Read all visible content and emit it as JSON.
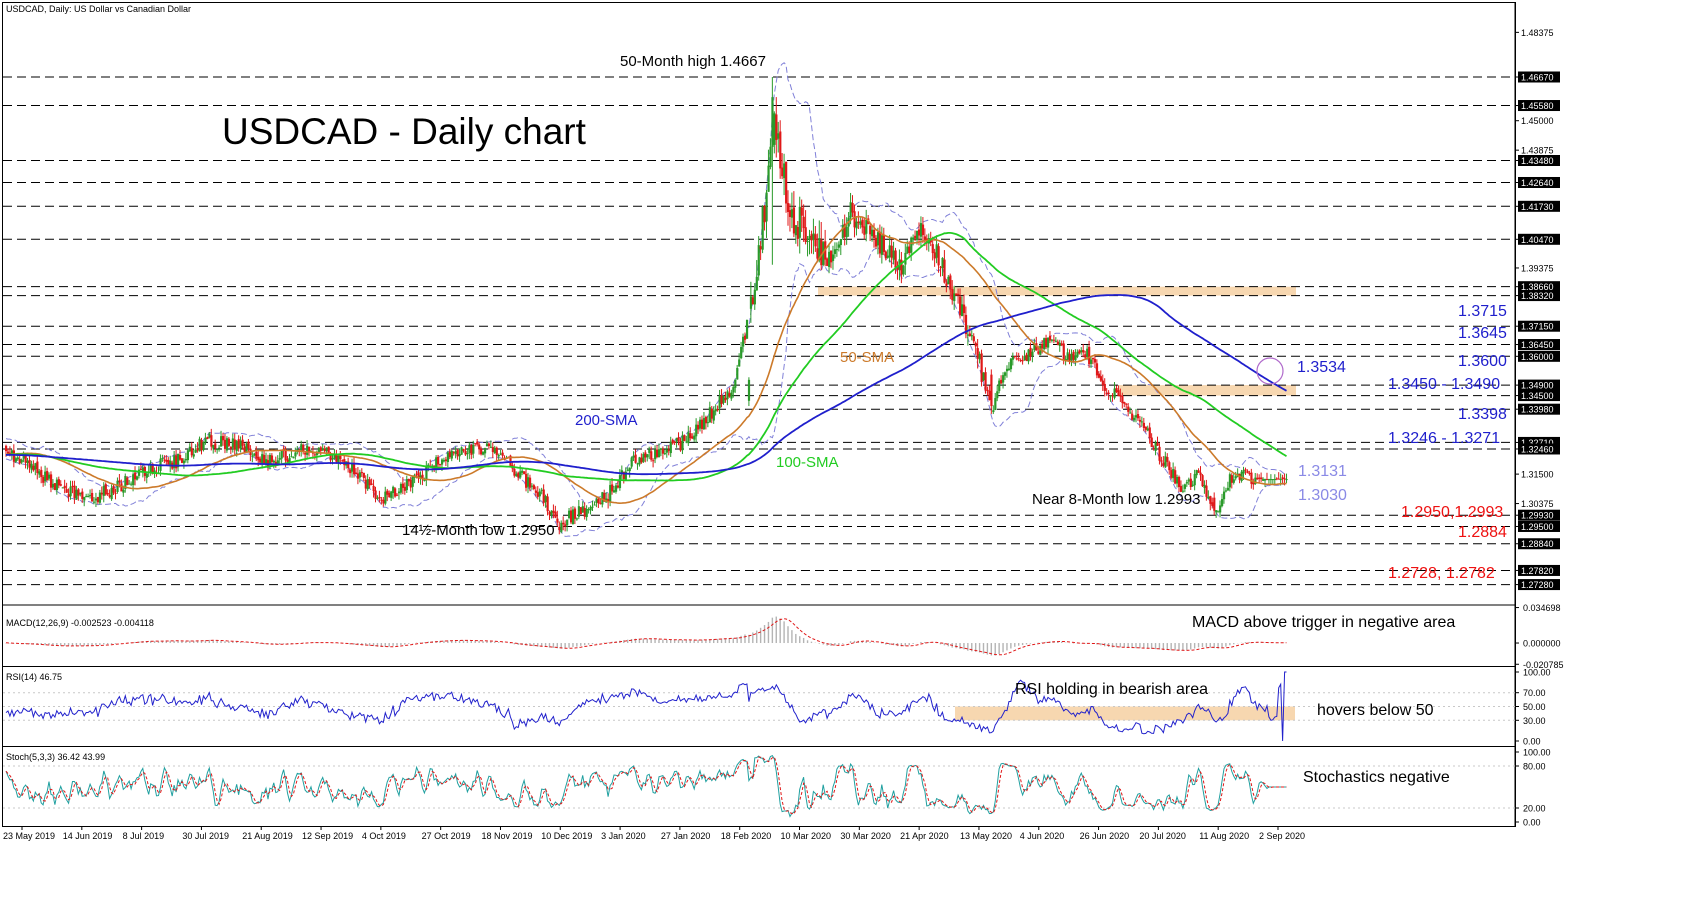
{
  "chart_data": [
    {
      "type": "candlestick",
      "name": "price",
      "header": "USDCAD, Daily:  US Dollar vs Canadian Dollar",
      "title": "USDCAD - Daily chart",
      "ylim": [
        1.265,
        1.49
      ],
      "ytick_labels": [
        "1.48375",
        "1.46670",
        "1.45580",
        "1.45000",
        "1.43875",
        "1.43480",
        "1.42640",
        "1.41730",
        "1.40470",
        "1.39375",
        "1.38660",
        "1.38320",
        "1.37150",
        "1.36450",
        "1.36000",
        "1.34900",
        "1.34500",
        "1.33980",
        "1.32710",
        "1.32460",
        "1.31500",
        "1.30375",
        "1.29930",
        "1.29500",
        "1.28840",
        "1.27820",
        "1.27280"
      ],
      "ytick_values": [
        1.48375,
        1.4667,
        1.4558,
        1.45,
        1.43875,
        1.4348,
        1.4264,
        1.4173,
        1.4047,
        1.39375,
        1.3866,
        1.3832,
        1.3715,
        1.3645,
        1.36,
        1.349,
        1.345,
        1.3398,
        1.3271,
        1.3246,
        1.315,
        1.30375,
        1.2993,
        1.295,
        1.2884,
        1.2782,
        1.2728
      ],
      "horizontal_levels": [
        1.4667,
        1.4558,
        1.4348,
        1.4264,
        1.4173,
        1.4047,
        1.3866,
        1.3832,
        1.3715,
        1.3645,
        1.36,
        1.349,
        1.345,
        1.3398,
        1.3271,
        1.3246,
        1.2993,
        1.295,
        1.2884,
        1.2782,
        1.2728
      ],
      "zones": [
        [
          1.3832,
          1.3866
        ],
        [
          1.345,
          1.349
        ]
      ],
      "x_tick_labels": [
        "23 May 2019",
        "14 Jun 2019",
        "8 Jul 2019",
        "30 Jul 2019",
        "21 Aug 2019",
        "12 Sep 2019",
        "4 Oct 2019",
        "27 Oct 2019",
        "18 Nov 2019",
        "10 Dec 2019",
        "3 Jan 2020",
        "27 Jan 2020",
        "18 Feb 2020",
        "10 Mar 2020",
        "30 Mar 2020",
        "21 Apr 2020",
        "13 May 2020",
        "4 Jun 2020",
        "26 Jun 2020",
        "20 Jul 2020",
        "11 Aug 2020",
        "2 Sep 2020"
      ],
      "anchors": [
        [
          0,
          1.323
        ],
        [
          12,
          1.318
        ],
        [
          25,
          1.311
        ],
        [
          40,
          1.305
        ],
        [
          55,
          1.309
        ],
        [
          72,
          1.317
        ],
        [
          88,
          1.32
        ],
        [
          102,
          1.328
        ],
        [
          120,
          1.326
        ],
        [
          135,
          1.32
        ],
        [
          150,
          1.324
        ],
        [
          165,
          1.323
        ],
        [
          180,
          1.315
        ],
        [
          192,
          1.305
        ],
        [
          208,
          1.312
        ],
        [
          222,
          1.32
        ],
        [
          236,
          1.324
        ],
        [
          250,
          1.325
        ],
        [
          262,
          1.315
        ],
        [
          275,
          1.306
        ],
        [
          282,
          1.296
        ],
        [
          295,
          1.301
        ],
        [
          308,
          1.307
        ],
        [
          320,
          1.32
        ],
        [
          335,
          1.323
        ],
        [
          348,
          1.328
        ],
        [
          360,
          1.338
        ],
        [
          372,
          1.348
        ],
        [
          384,
          1.39
        ],
        [
          393,
          1.45
        ],
        [
          400,
          1.418
        ],
        [
          410,
          1.405
        ],
        [
          420,
          1.395
        ],
        [
          432,
          1.415
        ],
        [
          445,
          1.405
        ],
        [
          458,
          1.395
        ],
        [
          468,
          1.412
        ],
        [
          478,
          1.396
        ],
        [
          488,
          1.378
        ],
        [
          496,
          1.362
        ],
        [
          504,
          1.34
        ],
        [
          512,
          1.357
        ],
        [
          522,
          1.36
        ],
        [
          532,
          1.366
        ],
        [
          542,
          1.361
        ],
        [
          552,
          1.362
        ],
        [
          562,
          1.349
        ],
        [
          572,
          1.342
        ],
        [
          582,
          1.333
        ],
        [
          592,
          1.32
        ],
        [
          602,
          1.31
        ],
        [
          610,
          1.315
        ],
        [
          618,
          1.3
        ],
        [
          625,
          1.312
        ],
        [
          632,
          1.315
        ],
        [
          640,
          1.3131
        ]
      ],
      "events": [
        [
          392,
          1.4667,
          1.395,
          1.44,
          1.459
        ],
        [
          282,
          1.301,
          1.295,
          1.298,
          1.2965
        ],
        [
          618,
          1.308,
          1.2993,
          1.306,
          1.301
        ],
        [
          504,
          1.355,
          1.338,
          1.353,
          1.341
        ],
        [
          380,
          1.352,
          1.341,
          1.343,
          1.351
        ]
      ],
      "sma_periods": [
        50,
        100,
        200
      ],
      "bollinger": {
        "period": 20,
        "stdev": 2
      },
      "series": [
        {
          "name": "50-SMA",
          "color": "#cc7a2a"
        },
        {
          "name": "100-SMA",
          "color": "#22cc22"
        },
        {
          "name": "200-SMA",
          "color": "#1f1fcc"
        }
      ],
      "annotations": [
        {
          "text": "50-Month high 1.4667",
          "color": "#000000"
        },
        {
          "text": "14½-Month low 1.2950",
          "color": "#000000"
        },
        {
          "text": "Near 8-Month low 1.2993",
          "color": "#000000"
        },
        {
          "text": "50-SMA",
          "color": "#cc7a2a"
        },
        {
          "text": "100-SMA",
          "color": "#22cc22"
        },
        {
          "text": "200-SMA",
          "color": "#1f1fcc"
        },
        {
          "text": "1.3715",
          "color": "#1f1fcc"
        },
        {
          "text": "1.3645",
          "color": "#1f1fcc"
        },
        {
          "text": "1.3600",
          "color": "#1f1fcc"
        },
        {
          "text": "1.3534",
          "color": "#1f1fcc"
        },
        {
          "text": "1.3450 - 1.3490",
          "color": "#1f1fcc"
        },
        {
          "text": "1.3398",
          "color": "#1f1fcc"
        },
        {
          "text": "1.3246 - 1.3271",
          "color": "#1f1fcc"
        },
        {
          "text": "1.3131",
          "color": "#8a8ae6"
        },
        {
          "text": "1.3030",
          "color": "#8a8ae6"
        },
        {
          "text": "1.2950,1.2993",
          "color": "#ee1111"
        },
        {
          "text": "1.2884",
          "color": "#ee1111"
        },
        {
          "text": "1.2728, 1.2782",
          "color": "#ee1111"
        }
      ]
    },
    {
      "type": "histogram",
      "name": "macd",
      "header": "MACD(12,26,9) -0.002523 -0.004118",
      "values": [
        -0.002523,
        -0.004118
      ],
      "ylim": [
        -0.0215,
        0.0372
      ],
      "ytick_labels": [
        "0.034698",
        "0.000000",
        "-0.020785"
      ],
      "ytick_values": [
        0.034698,
        0.0,
        -0.020785
      ],
      "annotation": "MACD above trigger in negative area"
    },
    {
      "type": "line",
      "name": "rsi",
      "header": "RSI(14) 46.75",
      "value": 46.75,
      "ylim": [
        0,
        100
      ],
      "ytick_labels": [
        "100.00",
        "70.00",
        "50.00",
        "30.00",
        "0.00"
      ],
      "ytick_values": [
        100,
        70,
        50,
        30,
        0
      ],
      "zone": [
        30,
        50
      ],
      "annotations": [
        "RSI holding in bearish area",
        "hovers below 50"
      ]
    },
    {
      "type": "line",
      "name": "stoch",
      "header": "Stoch(5,3,3) 36.42 43.99",
      "values": [
        36.42,
        43.99
      ],
      "ylim": [
        0,
        100
      ],
      "ytick_labels": [
        "100.00",
        "80.00",
        "20.00",
        "0.00"
      ],
      "ytick_values": [
        100,
        80,
        20,
        0
      ],
      "annotation": "Stochastics negative"
    }
  ],
  "colors": {
    "bull": "#2a9a2a",
    "bear": "#e01818",
    "bollinger": "#8080d8",
    "sma50": "#cc7a2a",
    "sma100": "#22cc22",
    "sma200": "#1f1fcc",
    "zone": "#f7d7b0",
    "macd_hist": "#b4b4b4",
    "signal": "#e01818",
    "rsi": "#2222cc",
    "stoch_k": "#20a0a0",
    "stoch_d": "#e01818",
    "level_red": "#ee1111",
    "label_blue": "#1f1fcc"
  }
}
